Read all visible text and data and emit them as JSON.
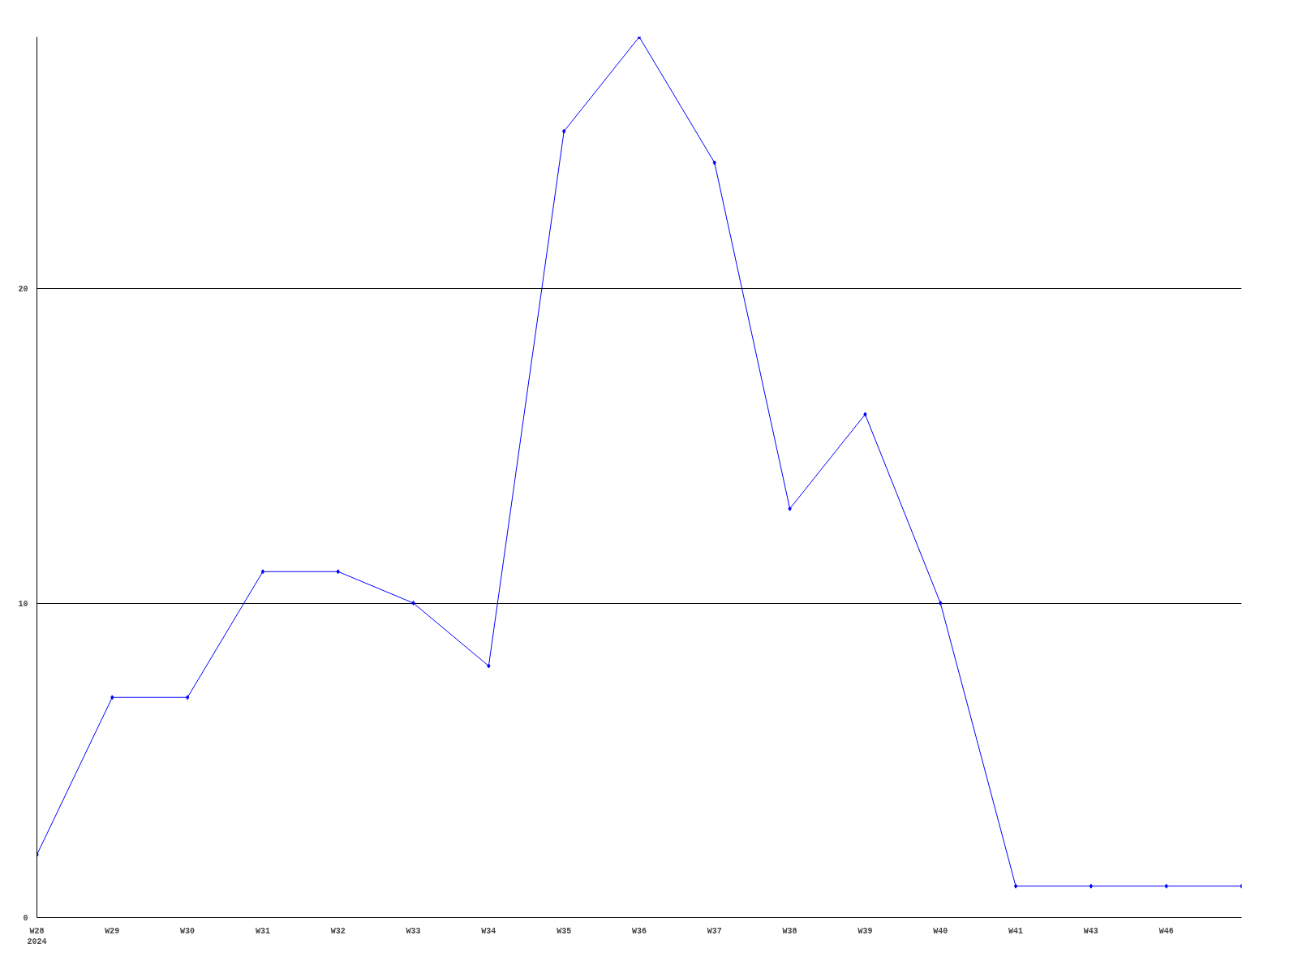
{
  "chart_data": {
    "type": "line",
    "categories": [
      "W28\n2024",
      "W29",
      "W30",
      "W31",
      "W32",
      "W33",
      "W34",
      "W35",
      "W36",
      "W37",
      "W38",
      "W39",
      "W40",
      "W41",
      "W43",
      "W46",
      null
    ],
    "series": [
      {
        "color": "#0000ff",
        "values": [
          2,
          7,
          7,
          11,
          11,
          10,
          8,
          25,
          28,
          24,
          13,
          16,
          10,
          1,
          1,
          1,
          1
        ]
      }
    ],
    "ylim": [
      0,
      28
    ],
    "yticks": [
      0,
      10,
      20
    ],
    "grid": "y",
    "marker": "diamond",
    "line_style": "solid"
  }
}
